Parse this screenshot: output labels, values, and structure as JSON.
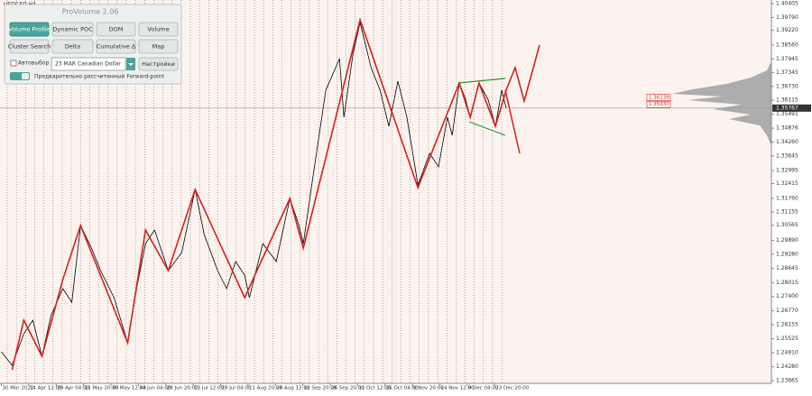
{
  "symbol": "USDCAD,H4",
  "panel": {
    "title": "ProVolume 2.06",
    "buttons": [
      "Volume Profile",
      "Dynamic POC",
      "DOM",
      "Volume",
      "Cluster Search",
      "Delta",
      "Cumulative Δ",
      "Map"
    ],
    "auto_select": "Автовыбор",
    "instrument": "23 MAR Canadian Dollar",
    "settings": "Настройки",
    "forward_point": "Предварительно рассчитанный Forward-point"
  },
  "chart_data": {
    "type": "line",
    "xlim": [
      -0.05,
      28.1
    ],
    "ylim": [
      1.23665,
      1.40405
    ],
    "xticks": [
      {
        "value": 0,
        "label": "30 Mar 2022"
      },
      {
        "value": 1,
        "label": "14 Apr 12:00"
      },
      {
        "value": 2,
        "label": "29 Apr 04:00"
      },
      {
        "value": 3,
        "label": "13 May 20:00"
      },
      {
        "value": 4,
        "label": "30 May 12:00"
      },
      {
        "value": 5,
        "label": "14 Jun 04:00"
      },
      {
        "value": 6,
        "label": "28 Jun 20:00"
      },
      {
        "value": 7,
        "label": "13 Jul 12:00"
      },
      {
        "value": 8,
        "label": "28 Jul 04:00"
      },
      {
        "value": 9,
        "label": "11 Aug 20:00"
      },
      {
        "value": 10,
        "label": "26 Aug 12:00"
      },
      {
        "value": 11,
        "label": "12 Sep 20:00"
      },
      {
        "value": 12,
        "label": "26 Sep 20:00"
      },
      {
        "value": 13,
        "label": "11 Oct 12:00"
      },
      {
        "value": 14,
        "label": "26 Oct 04:00"
      },
      {
        "value": 15,
        "label": "9 Nov 20:00"
      },
      {
        "value": 16,
        "label": "24 Nov 12:00"
      },
      {
        "value": 17,
        "label": "9 Dec 04:00"
      },
      {
        "value": 18,
        "label": "23 Dec 20:00"
      }
    ],
    "yticks": [
      {
        "value": 1.40405,
        "label": "1.40405"
      },
      {
        "value": 1.3979,
        "label": "1.39790"
      },
      {
        "value": 1.3922,
        "label": "1.39220"
      },
      {
        "value": 1.3856,
        "label": "1.38560"
      },
      {
        "value": 1.37945,
        "label": "1.37945"
      },
      {
        "value": 1.37345,
        "label": "1.37345"
      },
      {
        "value": 1.3673,
        "label": "1.36730"
      },
      {
        "value": 1.36115,
        "label": "1.36115"
      },
      {
        "value": 1.35491,
        "label": "1.35491"
      },
      {
        "value": 1.34876,
        "label": "1.34876"
      },
      {
        "value": 1.3426,
        "label": "1.34260"
      },
      {
        "value": 1.33645,
        "label": "1.33645"
      },
      {
        "value": 1.32995,
        "label": "1.32995"
      },
      {
        "value": 1.32415,
        "label": "1.32415"
      },
      {
        "value": 1.3176,
        "label": "1.31760"
      },
      {
        "value": 1.31155,
        "label": "1.31155"
      },
      {
        "value": 1.30565,
        "label": "1.30565"
      },
      {
        "value": 1.2989,
        "label": "1.29890"
      },
      {
        "value": 1.2928,
        "label": "1.29280"
      },
      {
        "value": 1.28645,
        "label": "1.28645"
      },
      {
        "value": 1.28015,
        "label": "1.28015"
      },
      {
        "value": 1.274,
        "label": "1.27400"
      },
      {
        "value": 1.2677,
        "label": "1.26770"
      },
      {
        "value": 1.26155,
        "label": "1.26155"
      },
      {
        "value": 1.25525,
        "label": "1.25525"
      },
      {
        "value": 1.2491,
        "label": "1.24910"
      },
      {
        "value": 1.2428,
        "label": "1.24280"
      },
      {
        "value": 1.23665,
        "label": "1.23665"
      }
    ],
    "series": [
      {
        "color": "#000000",
        "x": [
          0,
          0.39,
          0.82,
          1.15,
          1.48,
          1.81,
          2.24,
          2.57,
          2.89,
          3.29,
          3.62,
          4.11,
          4.61,
          4.93,
          5.26,
          5.59,
          6.09,
          6.58,
          7.07,
          7.4,
          7.89,
          8.22,
          8.55,
          8.88,
          9.05,
          9.54,
          10.03,
          10.53,
          10.86,
          11.02,
          11.35,
          11.84,
          12.34,
          12.5,
          12.83,
          13.09,
          13.49,
          13.82,
          14.14,
          14.47,
          14.8,
          15.2,
          15.63,
          15.95,
          16.28,
          16.45,
          16.71,
          16.94,
          17.11,
          17.43,
          17.76,
          18.03,
          18.26,
          18.42
        ],
        "values": [
          1.24946,
          1.24345,
          1.25747,
          1.26347,
          1.24745,
          1.26548,
          1.27749,
          1.27148,
          1.30553,
          1.29551,
          1.2855,
          1.27349,
          1.25346,
          1.27749,
          1.29752,
          1.30352,
          1.2855,
          1.29351,
          1.32155,
          1.30152,
          1.2855,
          1.27749,
          1.28951,
          1.2835,
          1.27349,
          1.29752,
          1.28951,
          1.31754,
          1.30553,
          1.29752,
          1.32555,
          1.3656,
          1.37962,
          1.35359,
          1.38162,
          1.39564,
          1.37561,
          1.3656,
          1.34958,
          1.36961,
          1.35359,
          1.32355,
          1.33757,
          1.33156,
          1.35359,
          1.34558,
          1.36881,
          1.3616,
          1.35359,
          1.36881,
          1.3616,
          1.34958,
          1.3656,
          1.35767
        ]
      },
      {
        "color": "#d42020",
        "x": [
          0.39,
          0.82,
          1.48,
          2.24,
          2.89,
          4.61,
          5.26,
          6.09,
          7.07,
          8.88,
          10.53,
          11.02,
          13.09,
          15.2,
          16.71,
          17.11,
          17.43,
          18.03,
          18.42,
          18.75,
          19.08,
          19.64
        ],
        "values": [
          1.24145,
          1.26347,
          1.24745,
          1.2815,
          1.30553,
          1.25346,
          1.30352,
          1.2855,
          1.32155,
          1.27349,
          1.31754,
          1.29551,
          1.39684,
          1.32235,
          1.36881,
          1.35359,
          1.36881,
          1.34958,
          1.3656,
          1.37561,
          1.3608,
          1.38563
        ]
      }
    ],
    "current_price": {
      "value": 1.35767,
      "label": "1.35767"
    },
    "price_labels": [
      {
        "value": 1.36239,
        "label": "1.36239"
      },
      {
        "value": 1.3593,
        "label": "1.35930"
      }
    ]
  }
}
